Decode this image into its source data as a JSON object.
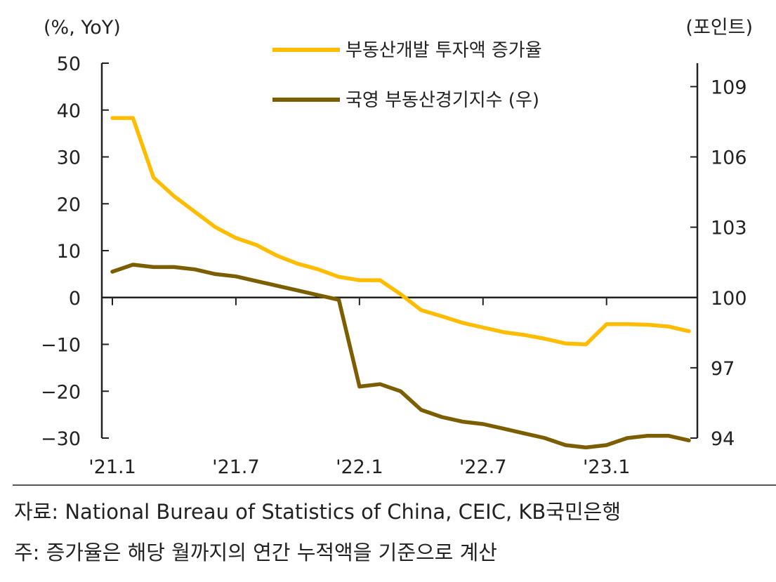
{
  "chart_data": {
    "type": "line",
    "left_axis_unit": "(%, YoY)",
    "right_axis_unit": "(포인트)",
    "left_ylim": [
      -30,
      50
    ],
    "left_yticks": [
      "50",
      "40",
      "30",
      "20",
      "10",
      "0",
      "-10",
      "-20",
      "-30"
    ],
    "left_ytick_values": [
      50,
      40,
      30,
      20,
      10,
      0,
      -10,
      -20,
      -30
    ],
    "right_ylim": [
      94,
      110
    ],
    "right_yticks": [
      "109",
      "106",
      "103",
      "100",
      "97",
      "94"
    ],
    "right_ytick_values": [
      109,
      106,
      103,
      100,
      97,
      94
    ],
    "x": [
      "2021-01",
      "2021-02",
      "2021-03",
      "2021-04",
      "2021-05",
      "2021-06",
      "2021-07",
      "2021-08",
      "2021-09",
      "2021-10",
      "2021-11",
      "2021-12",
      "2022-01",
      "2022-02",
      "2022-03",
      "2022-04",
      "2022-05",
      "2022-06",
      "2022-07",
      "2022-08",
      "2022-09",
      "2022-10",
      "2022-11",
      "2022-12",
      "2023-01",
      "2023-02",
      "2023-03",
      "2023-04",
      "2023-05"
    ],
    "xticks": [
      "'21.1",
      "'21.7",
      "'22.1",
      "'22.7",
      "'23.1"
    ],
    "xtick_values": [
      "2021-01",
      "2021-07",
      "2022-01",
      "2022-07",
      "2023-01"
    ],
    "series": [
      {
        "name": "부동산개발 투자액 증가율",
        "axis": "left",
        "color": "#FFBC00",
        "values": [
          38.3,
          38.3,
          25.6,
          21.6,
          18.3,
          15.0,
          12.7,
          11.2,
          8.9,
          7.2,
          6.0,
          4.4,
          3.7,
          3.7,
          0.7,
          -2.7,
          -4.0,
          -5.4,
          -6.4,
          -7.4,
          -8.0,
          -8.8,
          -9.8,
          -10.0,
          -5.7,
          -5.7,
          -5.8,
          -6.2,
          -7.2
        ]
      },
      {
        "name": "국영 부동산경기지수 (우)",
        "axis": "right",
        "color": "#7B5E00",
        "values": [
          101.1,
          101.4,
          101.3,
          101.3,
          101.2,
          101.0,
          100.9,
          100.7,
          100.5,
          100.3,
          100.1,
          99.9,
          96.2,
          96.3,
          96.0,
          95.2,
          94.9,
          94.7,
          94.6,
          94.4,
          94.2,
          94.0,
          93.7,
          93.6,
          93.7,
          94.0,
          94.1,
          94.1,
          93.9
        ]
      }
    ]
  },
  "footer": {
    "source": "자료: National Bureau of Statistics of China, CEIC, KB국민은행",
    "note": "주: 증가율은 해당 월까지의 연간 누적액을 기준으로 계산"
  }
}
